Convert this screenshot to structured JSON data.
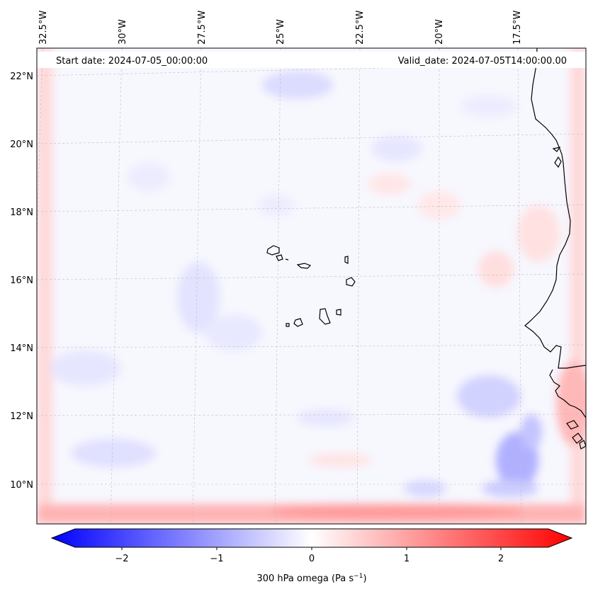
{
  "header": {
    "start_date": "Start date: 2024-07-05_00:00:00",
    "valid_date": "Valid_date: 2024-07-05T14:00:00.00"
  },
  "longitude_labels": [
    "32.5°W",
    "30°W",
    "27.5°W",
    "25°W",
    "22.5°W",
    "20°W",
    "17.5°W"
  ],
  "latitude_labels": [
    "22°N",
    "20°N",
    "18°N",
    "16°N",
    "14°N",
    "12°N",
    "10°N"
  ],
  "colorbar": {
    "ticks": [
      "−2",
      "−1",
      "0",
      "1",
      "2"
    ],
    "label": "300 hPa omega (Pa s",
    "label_sup": "−1",
    "label_end": ")",
    "colors": {
      "low": "#0000ff",
      "mid": "#ffffff",
      "high": "#ff0000"
    },
    "range": [
      -2.7,
      2.7
    ]
  },
  "map": {
    "variable": "300 hPa omega",
    "ocean_color": "#f8f8fe",
    "coastline_color": "#000000",
    "gridline_color": "#b0b0b0"
  }
}
